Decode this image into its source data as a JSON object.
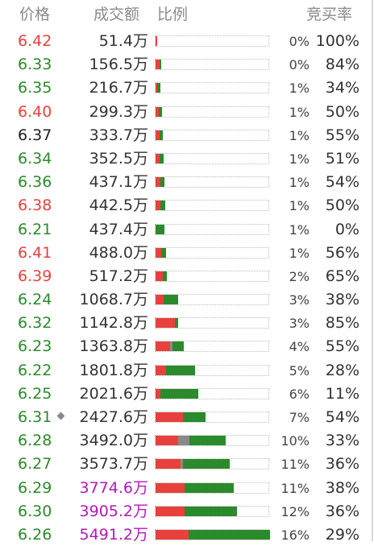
{
  "header": {
    "price": "价格",
    "volume": "成交额",
    "ratio": "比例",
    "bid_rate": "竞买率"
  },
  "colors": {
    "up": "#e8413d",
    "down": "#2b8a2b",
    "flat": "#222222",
    "highlight": "#b01ab8",
    "mid": "#8a8a8a"
  },
  "rows": [
    {
      "price": "6.42",
      "pc": "up",
      "volume": "51.4万",
      "vc": "normal",
      "pct": "0%",
      "bid": "100%",
      "r": 0.01,
      "g": 0.0,
      "m": 0.0
    },
    {
      "price": "6.33",
      "pc": "down",
      "volume": "156.5万",
      "vc": "normal",
      "pct": "0%",
      "bid": "84%",
      "r": 0.035,
      "g": 0.007,
      "m": 0.0
    },
    {
      "price": "6.35",
      "pc": "down",
      "volume": "216.7万",
      "vc": "normal",
      "pct": "1%",
      "bid": "34%",
      "r": 0.015,
      "g": 0.03,
      "m": 0.0
    },
    {
      "price": "6.40",
      "pc": "up",
      "volume": "299.3万",
      "vc": "normal",
      "pct": "1%",
      "bid": "50%",
      "r": 0.028,
      "g": 0.028,
      "m": 0.0
    },
    {
      "price": "6.37",
      "pc": "flat",
      "volume": "333.7万",
      "vc": "normal",
      "pct": "1%",
      "bid": "55%",
      "r": 0.033,
      "g": 0.027,
      "m": 0.0
    },
    {
      "price": "6.34",
      "pc": "down",
      "volume": "352.5万",
      "vc": "normal",
      "pct": "1%",
      "bid": "51%",
      "r": 0.032,
      "g": 0.032,
      "m": 0.0
    },
    {
      "price": "6.36",
      "pc": "down",
      "volume": "437.1万",
      "vc": "normal",
      "pct": "1%",
      "bid": "54%",
      "r": 0.043,
      "g": 0.036,
      "m": 0.0
    },
    {
      "price": "6.38",
      "pc": "up",
      "volume": "442.5万",
      "vc": "normal",
      "pct": "1%",
      "bid": "50%",
      "r": 0.04,
      "g": 0.04,
      "m": 0.0
    },
    {
      "price": "6.21",
      "pc": "down",
      "volume": "437.4万",
      "vc": "normal",
      "pct": "1%",
      "bid": "0%",
      "r": 0.0,
      "g": 0.08,
      "m": 0.0
    },
    {
      "price": "6.41",
      "pc": "up",
      "volume": "488.0万",
      "vc": "normal",
      "pct": "1%",
      "bid": "56%",
      "r": 0.05,
      "g": 0.04,
      "m": 0.0
    },
    {
      "price": "6.39",
      "pc": "up",
      "volume": "517.2万",
      "vc": "normal",
      "pct": "2%",
      "bid": "65%",
      "r": 0.06,
      "g": 0.035,
      "m": 0.0
    },
    {
      "price": "6.24",
      "pc": "down",
      "volume": "1068.7万",
      "vc": "normal",
      "pct": "3%",
      "bid": "38%",
      "r": 0.07,
      "g": 0.13,
      "m": 0.0
    },
    {
      "price": "6.32",
      "pc": "down",
      "volume": "1142.8万",
      "vc": "normal",
      "pct": "3%",
      "bid": "85%",
      "r": 0.17,
      "g": 0.03,
      "m": 0.0
    },
    {
      "price": "6.23",
      "pc": "down",
      "volume": "1363.8万",
      "vc": "normal",
      "pct": "4%",
      "bid": "55%",
      "r": 0.13,
      "g": 0.1,
      "m": 0.02
    },
    {
      "price": "6.22",
      "pc": "down",
      "volume": "1801.8万",
      "vc": "normal",
      "pct": "5%",
      "bid": "28%",
      "r": 0.09,
      "g": 0.25,
      "m": 0.0
    },
    {
      "price": "6.25",
      "pc": "down",
      "volume": "2021.6万",
      "vc": "normal",
      "pct": "6%",
      "bid": "11%",
      "r": 0.04,
      "g": 0.33,
      "m": 0.0
    },
    {
      "price": "6.31",
      "pc": "down",
      "volume": "2427.6万",
      "vc": "normal",
      "pct": "7%",
      "bid": "54%",
      "r": 0.24,
      "g": 0.2,
      "m": 0.0,
      "marker": true
    },
    {
      "price": "6.28",
      "pc": "down",
      "volume": "3492.0万",
      "vc": "normal",
      "pct": "10%",
      "bid": "33%",
      "r": 0.2,
      "g": 0.32,
      "m": 0.1
    },
    {
      "price": "6.27",
      "pc": "down",
      "volume": "3573.7万",
      "vc": "normal",
      "pct": "11%",
      "bid": "36%",
      "r": 0.22,
      "g": 0.41,
      "m": 0.02
    },
    {
      "price": "6.29",
      "pc": "down",
      "volume": "3774.6万",
      "vc": "highlight",
      "pct": "11%",
      "bid": "38%",
      "r": 0.25,
      "g": 0.43,
      "m": 0.0
    },
    {
      "price": "6.30",
      "pc": "down",
      "volume": "3905.2万",
      "vc": "highlight",
      "pct": "12%",
      "bid": "36%",
      "r": 0.25,
      "g": 0.46,
      "m": 0.0
    },
    {
      "price": "6.26",
      "pc": "down",
      "volume": "5491.2万",
      "vc": "highlight",
      "pct": "16%",
      "bid": "29%",
      "r": 0.29,
      "g": 0.71,
      "m": 0.0
    }
  ]
}
